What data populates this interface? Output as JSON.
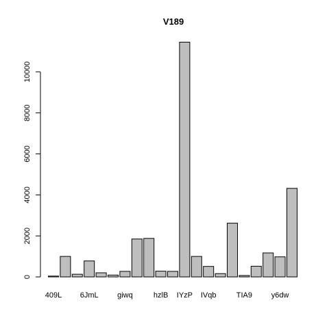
{
  "chart_data": {
    "type": "bar",
    "title": "V189",
    "xlabel": "",
    "ylabel": "",
    "ylim": [
      0,
      11500
    ],
    "yticks": [
      0,
      2000,
      4000,
      6000,
      8000,
      10000
    ],
    "ytick_labels": [
      "0",
      "2000",
      "4000",
      "6000",
      "8000",
      "10000"
    ],
    "categories": [
      "409L",
      "",
      "",
      "6JmL",
      "",
      "",
      "giwq",
      "",
      "",
      "hzlB",
      "",
      "IYzP",
      "",
      "IVqb",
      "",
      "",
      "TIA9",
      "",
      "",
      "y6dw",
      ""
    ],
    "values": [
      40,
      1000,
      130,
      780,
      200,
      90,
      270,
      1850,
      1880,
      280,
      270,
      11450,
      1000,
      510,
      160,
      2620,
      70,
      520,
      1170,
      980,
      4320
    ],
    "bar_color": "#bebebe",
    "grid": false,
    "legend": "none"
  }
}
